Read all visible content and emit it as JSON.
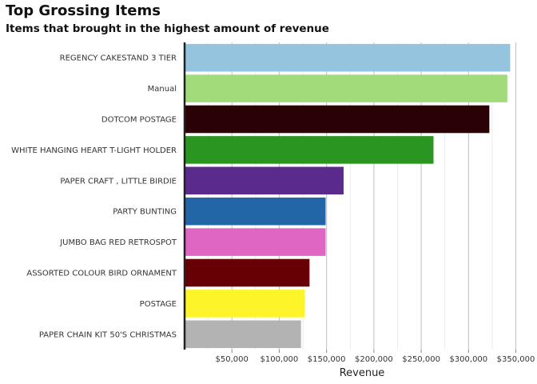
{
  "chart_data": {
    "type": "bar",
    "orientation": "horizontal",
    "title": "Top Grossing Items",
    "subtitle": "Items that brought in the highest amount of revenue",
    "xlabel": "Revenue",
    "ylabel": "",
    "xlim": [
      0,
      350000
    ],
    "xticks": [
      50000,
      100000,
      150000,
      200000,
      250000,
      300000,
      350000
    ],
    "xtick_labels": [
      "$50,000",
      "$100,000",
      "$150,000",
      "$200,000",
      "$250,000",
      "$300,000",
      "$350,000"
    ],
    "grid": true,
    "legend": "none",
    "categories": [
      "REGENCY CAKESTAND 3 TIER",
      "Manual",
      "DOTCOM POSTAGE",
      "WHITE HANGING HEART T-LIGHT HOLDER",
      "PAPER CRAFT , LITTLE BIRDIE",
      "PARTY BUNTING",
      "JUMBO BAG RED RETROSPOT",
      "ASSORTED COLOUR BIRD ORNAMENT",
      "POSTAGE",
      "PAPER CHAIN KIT 50'S CHRISTMAS"
    ],
    "values": [
      344000,
      341000,
      322000,
      263000,
      168000,
      149000,
      149000,
      132000,
      127000,
      123000
    ],
    "colors": [
      "#94c4de",
      "#a2dc7a",
      "#2a0206",
      "#2b9522",
      "#5a2a8c",
      "#2266a8",
      "#e066c4",
      "#660005",
      "#fdf52a",
      "#b3b3b3"
    ]
  }
}
